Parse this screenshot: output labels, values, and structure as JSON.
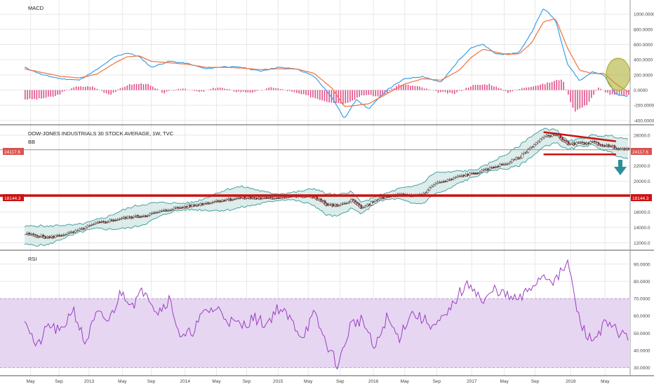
{
  "colors": {
    "macd_line": "#3aa0e8",
    "signal_line": "#f07040",
    "histogram": "#e0508a",
    "candle_up": "#2a7a3a",
    "candle_down": "#c0232a",
    "bb_band": "#4aa0a0",
    "bb_fill": "#b9dbd8",
    "bb_basis": "#8b3b2a",
    "support_line": "#cc1111",
    "price_line": "#e06060",
    "rsi_line": "#9b3fc0",
    "rsi_band": "#e6d6f2",
    "highlight_circle": "#a8a820",
    "arrow": "#2d8f9a",
    "grid": "#e8e8e8"
  },
  "chart_data": [
    {
      "type": "line",
      "title": "MACD",
      "ylim": [
        -420,
        1150
      ],
      "yticks": [
        "1000.0000",
        "800.0000",
        "600.0000",
        "400.0000",
        "200.0000",
        "0.0000",
        "-200.0000",
        "-400.0000"
      ],
      "ytick_values": [
        1000,
        800,
        600,
        400,
        200,
        0,
        -200,
        -400
      ],
      "series": [
        {
          "role": "macd",
          "x": [
            0,
            0.03,
            0.06,
            0.09,
            0.12,
            0.15,
            0.17,
            0.19,
            0.21,
            0.24,
            0.27,
            0.3,
            0.33,
            0.36,
            0.39,
            0.42,
            0.45,
            0.48,
            0.51,
            0.53,
            0.55,
            0.57,
            0.6,
            0.63,
            0.66,
            0.69,
            0.72,
            0.74,
            0.76,
            0.78,
            0.8,
            0.82,
            0.84,
            0.86,
            0.88,
            0.9,
            0.92,
            0.94,
            0.96,
            0.98,
            1.0
          ],
          "values": [
            300,
            200,
            150,
            130,
            270,
            440,
            490,
            440,
            300,
            380,
            350,
            280,
            310,
            300,
            250,
            300,
            280,
            180,
            -100,
            -380,
            -120,
            -250,
            0,
            150,
            180,
            100,
            400,
            560,
            600,
            480,
            470,
            500,
            760,
            1080,
            920,
            340,
            120,
            240,
            200,
            -60,
            -80
          ]
        },
        {
          "role": "signal",
          "x": [
            0,
            0.03,
            0.06,
            0.09,
            0.12,
            0.15,
            0.17,
            0.19,
            0.21,
            0.24,
            0.27,
            0.3,
            0.33,
            0.36,
            0.39,
            0.42,
            0.45,
            0.48,
            0.51,
            0.53,
            0.55,
            0.57,
            0.6,
            0.63,
            0.66,
            0.69,
            0.72,
            0.74,
            0.76,
            0.78,
            0.8,
            0.82,
            0.84,
            0.86,
            0.88,
            0.9,
            0.92,
            0.94,
            0.96,
            0.98,
            1.0
          ],
          "values": [
            280,
            230,
            180,
            160,
            210,
            360,
            440,
            450,
            380,
            360,
            340,
            300,
            300,
            290,
            270,
            280,
            280,
            220,
            20,
            -220,
            -200,
            -180,
            -50,
            80,
            150,
            130,
            260,
            430,
            540,
            500,
            470,
            480,
            620,
            900,
            940,
            550,
            260,
            220,
            220,
            80,
            -20
          ]
        },
        {
          "role": "histogram",
          "x": [
            0.02,
            0.05,
            0.08,
            0.11,
            0.14,
            0.17,
            0.2,
            0.23,
            0.26,
            0.29,
            0.32,
            0.35,
            0.38,
            0.41,
            0.44,
            0.47,
            0.5,
            0.53,
            0.56,
            0.59,
            0.62,
            0.65,
            0.68,
            0.71,
            0.74,
            0.77,
            0.8,
            0.83,
            0.86,
            0.89,
            0.91,
            0.93,
            0.95,
            0.97,
            0.99
          ],
          "values": [
            -120,
            -80,
            40,
            50,
            -60,
            70,
            90,
            -40,
            30,
            -30,
            40,
            -20,
            -30,
            40,
            -20,
            -80,
            -150,
            -180,
            -60,
            -90,
            80,
            50,
            -20,
            -50,
            60,
            80,
            -30,
            40,
            80,
            150,
            -280,
            -200,
            30,
            -60,
            -70
          ]
        }
      ]
    },
    {
      "type": "candlestick",
      "title": "DOW-JONES INDUSTRIALS 30 STOCK AVERAGE, 1W, TVC",
      "indicator": "BB",
      "ylim": [
        11300,
        26900
      ],
      "yticks": [
        "26000.0",
        "24000.0",
        "22000.0",
        "20000.0",
        "18000.0",
        "16000.0",
        "14000.0",
        "12000.0"
      ],
      "ytick_values": [
        26000,
        24000,
        22000,
        20000,
        18000,
        16000,
        14000,
        12000
      ],
      "current_price_label": "24117.6",
      "support_label": "18144.3",
      "close": {
        "x": [
          0,
          0.04,
          0.08,
          0.12,
          0.16,
          0.2,
          0.24,
          0.28,
          0.32,
          0.36,
          0.4,
          0.44,
          0.48,
          0.5,
          0.52,
          0.54,
          0.56,
          0.58,
          0.6,
          0.62,
          0.64,
          0.66,
          0.68,
          0.7,
          0.72,
          0.74,
          0.76,
          0.78,
          0.8,
          0.82,
          0.84,
          0.86,
          0.88,
          0.9,
          0.92,
          0.94,
          0.96,
          0.98,
          1.0
        ],
        "values": [
          13200,
          12700,
          13400,
          14600,
          15200,
          15600,
          16400,
          16900,
          17500,
          17900,
          17800,
          18100,
          18000,
          17000,
          16800,
          17600,
          16500,
          17600,
          18000,
          18300,
          18100,
          18400,
          19800,
          20100,
          20700,
          21000,
          21400,
          22000,
          22400,
          23200,
          24600,
          25800,
          26200,
          24800,
          25000,
          25100,
          24700,
          24400,
          24100
        ]
      },
      "resistance_line": {
        "x": [
          0.86,
          0.98
        ],
        "values": [
          26400,
          25200
        ]
      },
      "support_line_high": {
        "x": [
          0.86,
          0.98
        ],
        "values": [
          23500,
          23500
        ]
      }
    },
    {
      "type": "line",
      "title": "RSI",
      "ylim": [
        27,
        96
      ],
      "yticks": [
        "90.0000",
        "80.0000",
        "70.0000",
        "60.0000",
        "50.0000",
        "40.0000",
        "30.0000"
      ],
      "ytick_values": [
        90,
        80,
        70,
        60,
        50,
        40,
        30
      ],
      "band": [
        30,
        70
      ],
      "series": [
        {
          "role": "rsi",
          "x": [
            0,
            0.02,
            0.04,
            0.06,
            0.08,
            0.1,
            0.12,
            0.14,
            0.16,
            0.18,
            0.2,
            0.22,
            0.24,
            0.26,
            0.28,
            0.3,
            0.32,
            0.34,
            0.36,
            0.38,
            0.4,
            0.42,
            0.44,
            0.46,
            0.48,
            0.5,
            0.52,
            0.54,
            0.56,
            0.58,
            0.6,
            0.62,
            0.64,
            0.66,
            0.68,
            0.7,
            0.72,
            0.74,
            0.76,
            0.78,
            0.8,
            0.82,
            0.84,
            0.86,
            0.88,
            0.9,
            0.92,
            0.94,
            0.96,
            0.98,
            1.0
          ],
          "values": [
            60,
            41,
            55,
            50,
            65,
            44,
            61,
            57,
            74,
            67,
            76,
            62,
            70,
            46,
            52,
            63,
            64,
            57,
            54,
            59,
            55,
            65,
            58,
            48,
            61,
            44,
            31,
            55,
            58,
            40,
            59,
            47,
            62,
            58,
            54,
            60,
            73,
            79,
            67,
            76,
            71,
            69,
            77,
            84,
            80,
            91,
            56,
            45,
            55,
            52,
            47
          ]
        }
      ]
    }
  ],
  "panels": {
    "macd": {
      "title": "MACD"
    },
    "price": {
      "title": "DOW-JONES INDUSTRIALS 30 STOCK AVERAGE, 1W, TVC",
      "indicator": "BB",
      "price_tag": "24117.6",
      "support_tag": "18144.3"
    },
    "rsi": {
      "title": "RSI"
    }
  },
  "x_axis": {
    "labels": [
      "May",
      "Sep",
      "2013",
      "May",
      "Sep",
      "2014",
      "May",
      "Sep",
      "2015",
      "May",
      "Sep",
      "2016",
      "May",
      "Sep",
      "2017",
      "May",
      "Sep",
      "2018",
      "May"
    ],
    "positions": [
      0.01,
      0.057,
      0.107,
      0.162,
      0.21,
      0.266,
      0.318,
      0.368,
      0.42,
      0.47,
      0.523,
      0.578,
      0.63,
      0.683,
      0.741,
      0.795,
      0.846,
      0.905,
      0.962
    ]
  },
  "annotations": {
    "highlight_circle": "macd bearish cross",
    "arrow": "down-arrow-icon"
  }
}
